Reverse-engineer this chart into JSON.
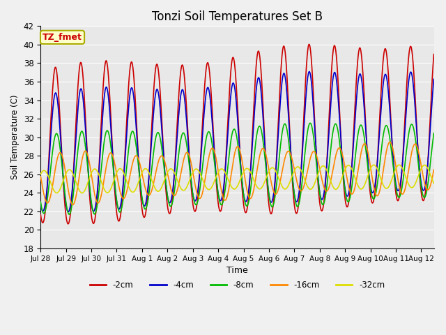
{
  "title": "Tonzi Soil Temperatures Set B",
  "xlabel": "Time",
  "ylabel": "Soil Temperature (C)",
  "annotation_text": "TZ_fmet",
  "annotation_color": "#cc0000",
  "annotation_bg": "#ffffcc",
  "annotation_border": "#aaaa00",
  "ylim": [
    18,
    42
  ],
  "series_order": [
    "-2cm",
    "-4cm",
    "-8cm",
    "-16cm",
    "-32cm"
  ],
  "series": {
    "-2cm": {
      "color": "#cc0000",
      "linewidth": 1.2
    },
    "-4cm": {
      "color": "#0000cc",
      "linewidth": 1.2
    },
    "-8cm": {
      "color": "#00bb00",
      "linewidth": 1.2
    },
    "-16cm": {
      "color": "#ff8800",
      "linewidth": 1.2
    },
    "-32cm": {
      "color": "#dddd00",
      "linewidth": 1.2
    }
  },
  "fig_bg_color": "#f0f0f0",
  "plot_bg": "#e8e8e8",
  "grid_color": "#ffffff",
  "tick_labels": [
    "Jul 28",
    "Jul 29",
    "Jul 30",
    "Jul 31",
    "Aug 1",
    "Aug 2",
    "Aug 3",
    "Aug 4",
    "Aug 5",
    "Aug 6",
    "Aug 7",
    "Aug 8",
    "Aug 9",
    "Aug 10",
    "Aug 11",
    "Aug 12"
  ],
  "legend_labels": [
    "-2cm",
    "-4cm",
    "-8cm",
    "-16cm",
    "-32cm"
  ],
  "legend_colors": [
    "#cc0000",
    "#0000cc",
    "#00bb00",
    "#ff8800",
    "#dddd00"
  ]
}
